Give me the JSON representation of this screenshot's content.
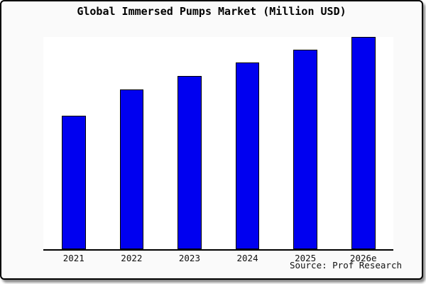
{
  "chart_data": {
    "type": "bar",
    "title": "Global Immersed Pumps Market (Million USD)",
    "unit": "Million USD",
    "categories": [
      "2021",
      "2022",
      "2023",
      "2024",
      "2025",
      "2026e"
    ],
    "values_relative": [
      62.9,
      75.3,
      81.6,
      88.0,
      94.0,
      100
    ],
    "value_axis_labeled": false,
    "xlabel": "",
    "ylabel": "",
    "grid": false,
    "legend": "none",
    "bar_color": "#0000f0",
    "bar_edge_color": "#000000",
    "background_color": "#fafafa",
    "plot_background": "#ffffff"
  },
  "source": {
    "label": "Source: Prof Research"
  }
}
